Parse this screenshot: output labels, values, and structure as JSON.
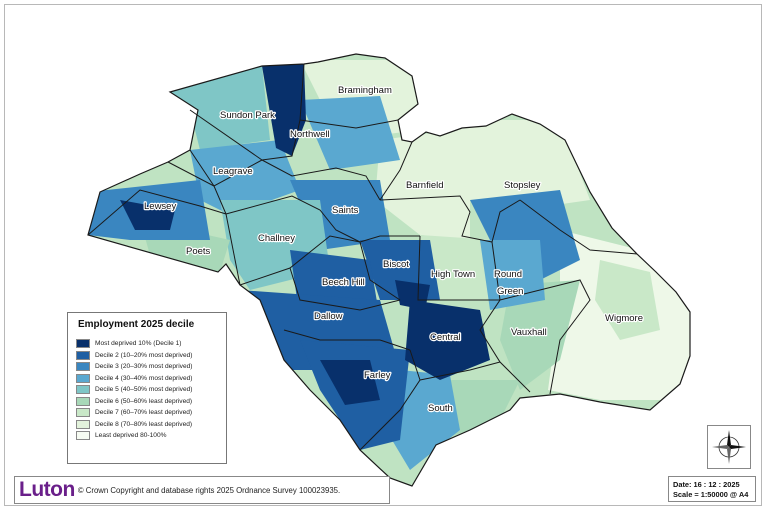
{
  "map": {
    "wards": [
      {
        "name": "Sundon Park"
      },
      {
        "name": "Northwell"
      },
      {
        "name": "Bramingham"
      },
      {
        "name": "Leagrave"
      },
      {
        "name": "Lewsey"
      },
      {
        "name": "Poets"
      },
      {
        "name": "Challney"
      },
      {
        "name": "Saints"
      },
      {
        "name": "Barnfield"
      },
      {
        "name": "Stopsley"
      },
      {
        "name": "Biscot"
      },
      {
        "name": "Beech Hill"
      },
      {
        "name": "High Town"
      },
      {
        "name": "Round"
      },
      {
        "name": "Green"
      },
      {
        "name": "Dallow"
      },
      {
        "name": "Central"
      },
      {
        "name": "Vauxhall"
      },
      {
        "name": "Wigmore"
      },
      {
        "name": "Farley"
      },
      {
        "name": "South"
      }
    ]
  },
  "legend": {
    "title": "Employment 2025 decile",
    "items": [
      {
        "label": "Most deprived 10% (Decile 1)",
        "color": "#08306b"
      },
      {
        "label": "Decile 2 (10–20% most deprived)",
        "color": "#1f5fa3"
      },
      {
        "label": "Decile 3 (20–30% most deprived)",
        "color": "#3a86c0"
      },
      {
        "label": "Decile 4 (30–40% most deprived)",
        "color": "#5aa8d0"
      },
      {
        "label": "Decile 5 (40–50% most deprived)",
        "color": "#7fc6c6"
      },
      {
        "label": "Decile 6 (50–60% least deprived)",
        "color": "#a8d8b8"
      },
      {
        "label": "Decile 7 (60–70% least deprived)",
        "color": "#c9e8c8"
      },
      {
        "label": "Decile 8 (70–80% least deprived)",
        "color": "#e3f3dc"
      },
      {
        "label": "Least deprived 80-100%",
        "color": "#f6fbf2"
      }
    ]
  },
  "footer": {
    "brand": "Luton",
    "copyright": "© Crown Copyright and database rights 2025 Ordnance Survey 100023935."
  },
  "info": {
    "date": "Date: 16 : 12 : 2025",
    "scale": "Scale = 1:50000 @ A4"
  },
  "colors": {
    "brand": "#6a1f8a",
    "boundary": "#1a1a1a"
  },
  "icons": {
    "compass": "north-arrow-compass-icon"
  }
}
